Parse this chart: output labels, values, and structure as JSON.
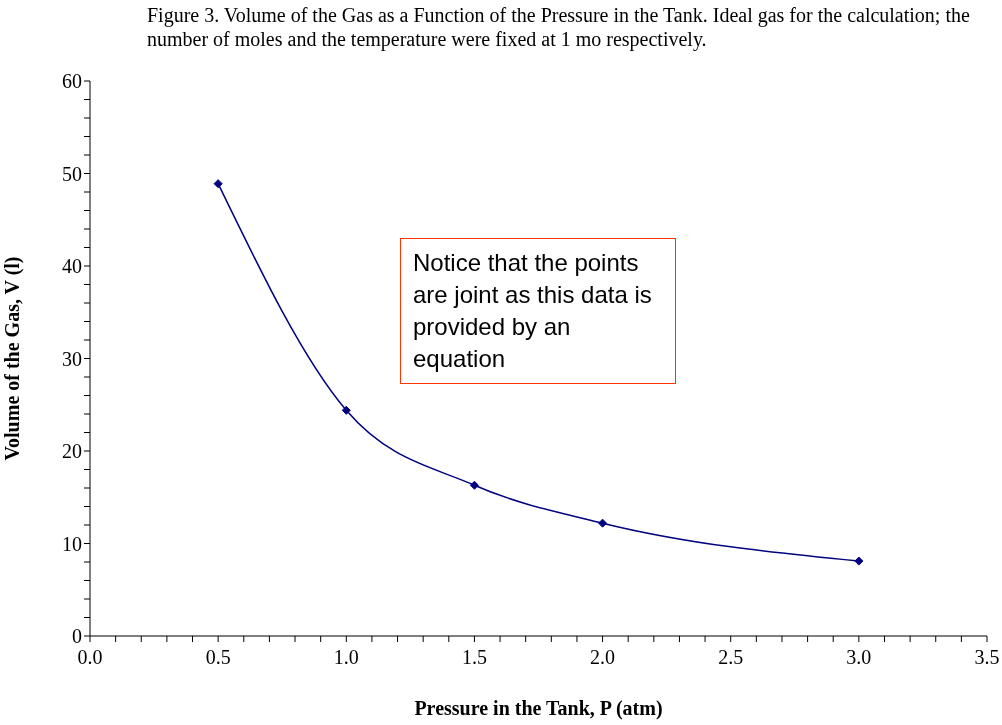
{
  "chart_data": {
    "type": "line",
    "title": "Figure 3. Volume of the Gas as a Function of the Pressure in the Tank. Ideal gas for the calculation; the number of moles and the temperature were fixed at 1 mo respectively.",
    "xlabel": "Pressure in the Tank, P (atm)",
    "ylabel": "Volume of the Gas, V (l)",
    "annotations": [
      "Notice that the points are joint as this data is provided by an equation"
    ],
    "x": [
      0.5,
      1.0,
      1.5,
      2.0,
      3.0
    ],
    "series": [
      {
        "color": "#000080",
        "values": [
          48.9,
          24.4,
          16.3,
          12.2,
          8.1
        ]
      }
    ],
    "xlim": [
      0,
      3.5
    ],
    "xticks": [
      {
        "value": 0,
        "label": "0.0"
      },
      {
        "value": 0.1,
        "label": null
      },
      {
        "value": 0.2,
        "label": null
      },
      {
        "value": 0.3,
        "label": null
      },
      {
        "value": 0.4,
        "label": null
      },
      {
        "value": 0.5,
        "label": "0.5"
      },
      {
        "value": 0.6,
        "label": null
      },
      {
        "value": 0.7,
        "label": null
      },
      {
        "value": 0.8,
        "label": null
      },
      {
        "value": 0.9,
        "label": null
      },
      {
        "value": 1,
        "label": "1.0"
      },
      {
        "value": 1.1,
        "label": null
      },
      {
        "value": 1.2,
        "label": null
      },
      {
        "value": 1.3,
        "label": null
      },
      {
        "value": 1.4,
        "label": null
      },
      {
        "value": 1.5,
        "label": "1.5"
      },
      {
        "value": 1.6,
        "label": null
      },
      {
        "value": 1.7,
        "label": null
      },
      {
        "value": 1.8,
        "label": null
      },
      {
        "value": 1.9,
        "label": null
      },
      {
        "value": 2,
        "label": "2.0"
      },
      {
        "value": 2.1,
        "label": null
      },
      {
        "value": 2.2,
        "label": null
      },
      {
        "value": 2.3,
        "label": null
      },
      {
        "value": 2.4,
        "label": null
      },
      {
        "value": 2.5,
        "label": "2.5"
      },
      {
        "value": 2.6,
        "label": null
      },
      {
        "value": 2.7,
        "label": null
      },
      {
        "value": 2.8,
        "label": null
      },
      {
        "value": 2.9,
        "label": null
      },
      {
        "value": 3,
        "label": "3.0"
      },
      {
        "value": 3.1,
        "label": null
      },
      {
        "value": 3.2,
        "label": null
      },
      {
        "value": 3.3,
        "label": null
      },
      {
        "value": 3.4,
        "label": null
      },
      {
        "value": 3.5,
        "label": "3.5"
      }
    ],
    "ylim": [
      0,
      60
    ],
    "yticks": [
      0,
      {
        "value": 2,
        "label": null
      },
      {
        "value": 4,
        "label": null
      },
      {
        "value": 6,
        "label": null
      },
      {
        "value": 8,
        "label": null
      },
      10,
      {
        "value": 12,
        "label": null
      },
      {
        "value": 14,
        "label": null
      },
      {
        "value": 16,
        "label": null
      },
      {
        "value": 18,
        "label": null
      },
      20,
      {
        "value": 22,
        "label": null
      },
      {
        "value": 24,
        "label": null
      },
      {
        "value": 26,
        "label": null
      },
      {
        "value": 28,
        "label": null
      },
      30,
      {
        "value": 32,
        "label": null
      },
      {
        "value": 34,
        "label": null
      },
      {
        "value": 36,
        "label": null
      },
      {
        "value": 38,
        "label": null
      },
      40,
      {
        "value": 42,
        "label": null
      },
      {
        "value": 44,
        "label": null
      },
      {
        "value": 46,
        "label": null
      },
      {
        "value": 48,
        "label": null
      },
      50,
      {
        "value": 52,
        "label": null
      },
      {
        "value": 54,
        "label": null
      },
      {
        "value": 56,
        "label": null
      },
      {
        "value": 58,
        "label": null
      },
      60
    ],
    "grid": false,
    "legend": false,
    "marker": "diamond",
    "line_style": "solid"
  }
}
